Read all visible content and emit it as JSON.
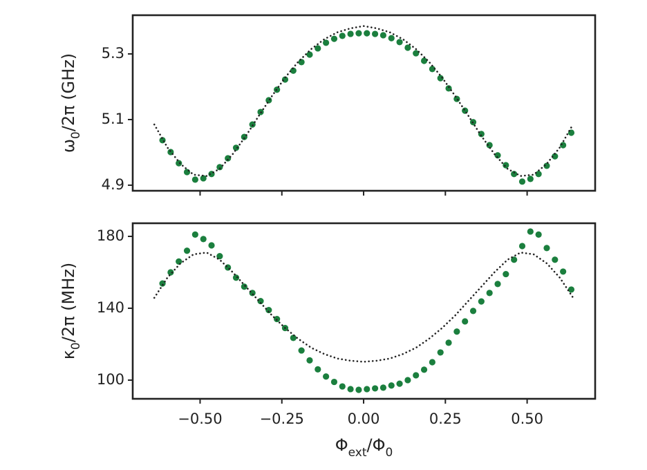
{
  "chart_data": [
    {
      "type": "scatter",
      "ylabel": [
        "ω",
        "0",
        "/2π (GHz)"
      ],
      "xlim": [
        -0.706,
        0.708
      ],
      "ylim": [
        4.883,
        5.418
      ],
      "xticks": [
        -0.5,
        -0.25,
        0,
        0.25,
        0.5
      ],
      "yticks": [
        4.9,
        5.1,
        5.3
      ],
      "series": [
        {
          "type": "scatter",
          "color": "#1b7f3e",
          "x": [
            -0.615,
            -0.59,
            -0.565,
            -0.54,
            -0.515,
            -0.49,
            -0.465,
            -0.44,
            -0.415,
            -0.39,
            -0.365,
            -0.34,
            -0.315,
            -0.29,
            -0.265,
            -0.24,
            -0.215,
            -0.19,
            -0.165,
            -0.14,
            -0.115,
            -0.09,
            -0.065,
            -0.04,
            -0.015,
            0.01,
            0.035,
            0.06,
            0.085,
            0.11,
            0.135,
            0.16,
            0.185,
            0.21,
            0.235,
            0.26,
            0.285,
            0.31,
            0.335,
            0.36,
            0.385,
            0.41,
            0.435,
            0.46,
            0.485,
            0.51,
            0.535,
            0.56,
            0.585,
            0.61,
            0.635
          ],
          "values": [
            5.037,
            5.001,
            4.967,
            4.94,
            4.917,
            4.921,
            4.934,
            4.955,
            4.982,
            5.014,
            5.047,
            5.085,
            5.123,
            5.159,
            5.191,
            5.222,
            5.249,
            5.275,
            5.298,
            5.317,
            5.334,
            5.346,
            5.355,
            5.361,
            5.363,
            5.363,
            5.361,
            5.357,
            5.348,
            5.336,
            5.319,
            5.302,
            5.279,
            5.254,
            5.226,
            5.195,
            5.163,
            5.127,
            5.092,
            5.056,
            5.022,
            4.991,
            4.961,
            4.934,
            4.911,
            4.919,
            4.934,
            4.959,
            4.988,
            5.022,
            5.06
          ]
        },
        {
          "type": "line",
          "color": "#222222",
          "x": [
            -0.64,
            -0.6,
            -0.56,
            -0.52,
            -0.48,
            -0.44,
            -0.4,
            -0.36,
            -0.32,
            -0.28,
            -0.24,
            -0.2,
            -0.16,
            -0.12,
            -0.08,
            -0.04,
            0,
            0.04,
            0.08,
            0.12,
            0.16,
            0.2,
            0.24,
            0.28,
            0.32,
            0.36,
            0.4,
            0.44,
            0.48,
            0.52,
            0.56,
            0.6,
            0.64
          ],
          "values": [
            5.085,
            5.015,
            4.965,
            4.932,
            4.928,
            4.95,
            4.995,
            5.05,
            5.112,
            5.172,
            5.228,
            5.276,
            5.315,
            5.345,
            5.366,
            5.378,
            5.385,
            5.378,
            5.366,
            5.345,
            5.315,
            5.276,
            5.228,
            5.172,
            5.112,
            5.05,
            4.995,
            4.95,
            4.928,
            4.932,
            4.965,
            5.015,
            5.085
          ]
        }
      ]
    },
    {
      "type": "scatter",
      "ylabel": [
        "κ",
        "0",
        "/2π (MHz)"
      ],
      "xlabel": [
        "Φ",
        "ext",
        "/Φ",
        "0"
      ],
      "xlim": [
        -0.706,
        0.708
      ],
      "ylim": [
        89.6,
        187.3
      ],
      "xticks": [
        {
          "value": -0.5,
          "label": "−0.50"
        },
        {
          "value": -0.25,
          "label": "−0.25"
        },
        {
          "value": 0,
          "label": "0.00"
        },
        {
          "value": 0.25,
          "label": "0.25"
        },
        {
          "value": 0.5,
          "label": "0.50"
        }
      ],
      "yticks": [
        100,
        140,
        180
      ],
      "series": [
        {
          "type": "scatter",
          "color": "#1b7f3e",
          "x": [
            -0.615,
            -0.59,
            -0.565,
            -0.54,
            -0.515,
            -0.49,
            -0.465,
            -0.44,
            -0.415,
            -0.39,
            -0.365,
            -0.34,
            -0.315,
            -0.29,
            -0.265,
            -0.24,
            -0.215,
            -0.19,
            -0.165,
            -0.14,
            -0.115,
            -0.09,
            -0.065,
            -0.04,
            -0.015,
            0.01,
            0.035,
            0.06,
            0.085,
            0.11,
            0.135,
            0.16,
            0.185,
            0.21,
            0.235,
            0.26,
            0.285,
            0.31,
            0.335,
            0.36,
            0.385,
            0.41,
            0.435,
            0.46,
            0.485,
            0.51,
            0.535,
            0.56,
            0.585,
            0.61,
            0.635
          ],
          "values": [
            153.8,
            160,
            166,
            172,
            181,
            178.5,
            175,
            169,
            162.7,
            157,
            152,
            148.5,
            144,
            139,
            134,
            129,
            123.5,
            116.5,
            111,
            106,
            102,
            99,
            96.5,
            95,
            94.6,
            95,
            95.4,
            95.8,
            97,
            98,
            100,
            102.7,
            105.8,
            110,
            115.4,
            120.8,
            127,
            132.7,
            138.5,
            143.8,
            148.5,
            153.5,
            159,
            167,
            174.6,
            182.7,
            181,
            173.5,
            167,
            160.4,
            150.4
          ]
        },
        {
          "type": "line",
          "color": "#222222",
          "x": [
            -0.64,
            -0.6,
            -0.56,
            -0.52,
            -0.48,
            -0.44,
            -0.4,
            -0.36,
            -0.32,
            -0.28,
            -0.24,
            -0.2,
            -0.16,
            -0.12,
            -0.08,
            -0.04,
            0,
            0.04,
            0.08,
            0.12,
            0.16,
            0.2,
            0.24,
            0.28,
            0.32,
            0.36,
            0.4,
            0.44,
            0.48,
            0.52,
            0.56,
            0.6,
            0.64
          ],
          "values": [
            145.8,
            157,
            165,
            170,
            171,
            167,
            160,
            152,
            144,
            136,
            129,
            123,
            118,
            114.5,
            112,
            110.8,
            110.2,
            110.8,
            112,
            114.5,
            118,
            123,
            129,
            136,
            144,
            152,
            160,
            167,
            171,
            170,
            165,
            157,
            146
          ]
        }
      ]
    }
  ]
}
